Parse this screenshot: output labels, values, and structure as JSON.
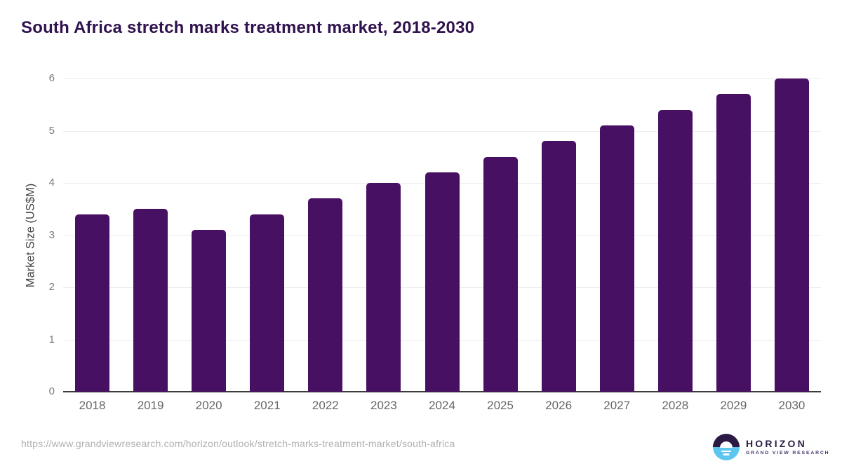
{
  "header": {
    "title": "South Africa stretch marks treatment market, 2018-2030"
  },
  "chart_data": {
    "type": "bar",
    "title": "South Africa stretch marks treatment market, 2018-2030",
    "categories": [
      "2018",
      "2019",
      "2020",
      "2021",
      "2022",
      "2023",
      "2024",
      "2025",
      "2026",
      "2027",
      "2028",
      "2029",
      "2030"
    ],
    "values": [
      3.4,
      3.5,
      3.1,
      3.4,
      3.7,
      4.0,
      4.2,
      4.5,
      4.8,
      5.1,
      5.4,
      5.7,
      6.0
    ],
    "xlabel": "",
    "ylabel": "Market Size (US$M)",
    "ylim": [
      0,
      6
    ],
    "yticks": [
      "0",
      "1",
      "2",
      "3",
      "4",
      "5",
      "6"
    ],
    "grid": "horizontal-only",
    "legend": "none",
    "bar_color": "#471063"
  },
  "colors": {
    "title": "#30124e",
    "bar": "#471063",
    "grid": "#ebebeb",
    "axis": "#3c3c3c",
    "y_tick": "#7a7a7a",
    "x_tick": "#666666",
    "y_label": "#444444",
    "url": "#b0b0b0",
    "logo_dark": "#2c1a45",
    "logo_blue": "#5ec6ee",
    "logo_subtitle": "#43306b",
    "background": "#ffffff"
  },
  "footer": {
    "source_url": "https://www.grandviewresearch.com/horizon/outlook/stretch-marks-treatment-market/south-africa",
    "logo": {
      "icon": "horizon-sun-icon",
      "name": "HORIZON",
      "subtitle": "GRAND VIEW RESEARCH"
    }
  }
}
